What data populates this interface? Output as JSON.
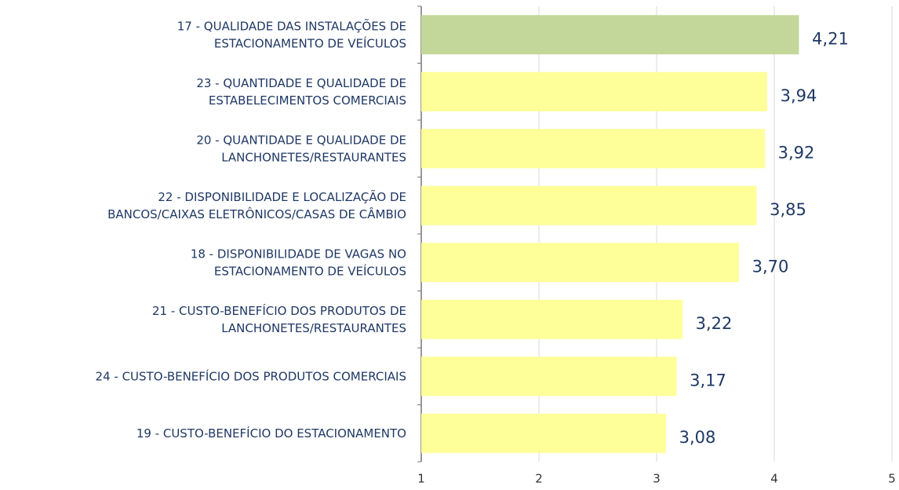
{
  "chart_data": {
    "type": "hbar",
    "categories": [
      "17 - QUALIDADE DAS INSTALAÇÕES DE\nESTACIONAMENTO DE VEÍCULOS",
      "23 - QUANTIDADE E QUALIDADE DE\nESTABELECIMENTOS COMERCIAIS",
      "20 - QUANTIDADE E QUALIDADE DE\nLANCHONETES/RESTAURANTES",
      "22 - DISPONIBILIDADE E LOCALIZAÇÃO DE\nBANCOS/CAIXAS ELETRÔNICOS/CASAS DE CÂMBIO",
      "18 - DISPONIBILIDADE DE VAGAS NO\nESTACIONAMENTO DE VEÍCULOS",
      "21 - CUSTO-BENEFÍCIO DOS PRODUTOS DE\nLANCHONETES/RESTAURANTES",
      "24 - CUSTO-BENEFÍCIO DOS PRODUTOS COMERCIAIS",
      "19 - CUSTO-BENEFÍCIO DO ESTACIONAMENTO"
    ],
    "values": [
      4.21,
      3.94,
      3.92,
      3.85,
      3.7,
      3.22,
      3.17,
      3.08
    ],
    "value_labels": [
      "4,21",
      "3,94",
      "3,92",
      "3,85",
      "3,70",
      "3,22",
      "3,17",
      "3,08"
    ],
    "colors": [
      "#c4d79b",
      "#ffff99",
      "#ffff99",
      "#ffff99",
      "#ffff99",
      "#ffff99",
      "#ffff99",
      "#ffff99"
    ],
    "xlim": [
      1,
      5
    ],
    "xticks": [
      1,
      2,
      3,
      4,
      5
    ],
    "grid": true
  }
}
